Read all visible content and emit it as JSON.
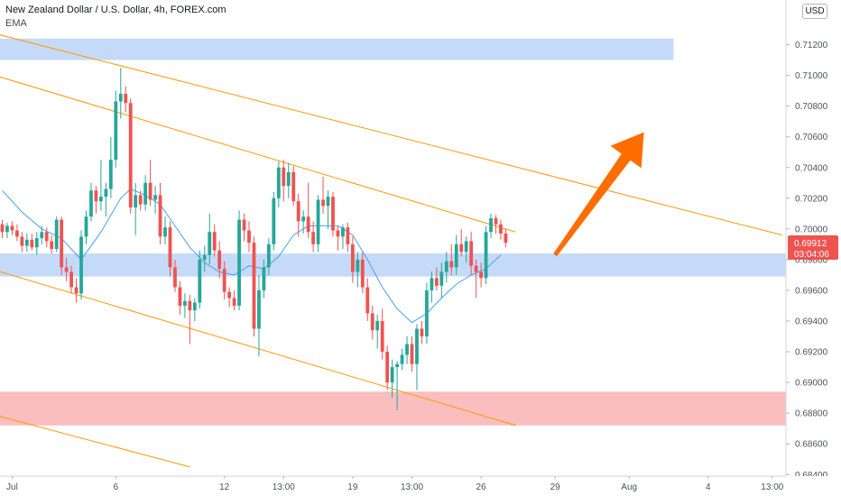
{
  "header": {
    "title": "New Zealand Dollar / U.S. Dollar, 4h, FOREX.com",
    "indicator": "EMA",
    "currency": "USD"
  },
  "price_label": {
    "price": "0.69912",
    "countdown": "03:04:06"
  },
  "colors": {
    "up": "#26a69a",
    "down": "#ef5350",
    "ema": "#42a5f5",
    "channel": "#ff9800",
    "support_zone": "#bbd3f7",
    "demand_zone": "#f9b3b3",
    "arrow": "#ff6d00",
    "price_tag": "#ef5350"
  },
  "chart_data": {
    "type": "candlestick",
    "symbol": "NZDUSD",
    "timeframe": "4h",
    "y_axis": {
      "min": 0.684,
      "max": 0.714,
      "ticks": [
        "0.71200",
        "0.71000",
        "0.70800",
        "0.70600",
        "0.70400",
        "0.70200",
        "0.70000",
        "0.69800",
        "0.69600",
        "0.69400",
        "0.69200",
        "0.69000",
        "0.68800",
        "0.68600",
        "0.68400"
      ]
    },
    "x_axis": {
      "labels": [
        {
          "text": "Jul",
          "bar": 2
        },
        {
          "text": "6",
          "bar": 23
        },
        {
          "text": "12",
          "bar": 45
        },
        {
          "text": "13:00",
          "bar": 57
        },
        {
          "text": "19",
          "bar": 71
        },
        {
          "text": "13:00",
          "bar": 83
        },
        {
          "text": "26",
          "bar": 97
        },
        {
          "text": "29",
          "bar": 112
        },
        {
          "text": "Aug",
          "bar": 127
        },
        {
          "text": "4",
          "bar": 143
        },
        {
          "text": "13:00",
          "bar": 156
        }
      ]
    },
    "last_price": 0.69912,
    "candles": [
      [
        0.7003,
        0.7006,
        0.6994,
        0.6998
      ],
      [
        0.6998,
        0.7004,
        0.6994,
        0.7002
      ],
      [
        0.7002,
        0.7005,
        0.6996,
        0.6999
      ],
      [
        0.6999,
        0.7003,
        0.6992,
        0.6995
      ],
      [
        0.6995,
        0.6998,
        0.6985,
        0.6989
      ],
      [
        0.6989,
        0.6997,
        0.6985,
        0.6993
      ],
      [
        0.6993,
        0.6997,
        0.6986,
        0.6988
      ],
      [
        0.6988,
        0.6998,
        0.6983,
        0.6994
      ],
      [
        0.6994,
        0.7002,
        0.699,
        0.6998
      ],
      [
        0.6998,
        0.7001,
        0.6988,
        0.6992
      ],
      [
        0.6992,
        0.6996,
        0.6984,
        0.6987
      ],
      [
        0.6987,
        0.7008,
        0.6985,
        0.7006
      ],
      [
        0.7006,
        0.7008,
        0.697,
        0.6975
      ],
      [
        0.6975,
        0.6981,
        0.6966,
        0.6972
      ],
      [
        0.6972,
        0.6976,
        0.6958,
        0.6962
      ],
      [
        0.6962,
        0.6968,
        0.6952,
        0.6958
      ],
      [
        0.6958,
        0.6999,
        0.6954,
        0.6995
      ],
      [
        0.6995,
        0.7012,
        0.699,
        0.7008
      ],
      [
        0.7008,
        0.703,
        0.7005,
        0.7025
      ],
      [
        0.7025,
        0.7028,
        0.701,
        0.7018
      ],
      [
        0.7018,
        0.7045,
        0.7012,
        0.7021
      ],
      [
        0.7021,
        0.703,
        0.7008,
        0.7026
      ],
      [
        0.7026,
        0.706,
        0.702,
        0.7045
      ],
      [
        0.7045,
        0.709,
        0.704,
        0.7083
      ],
      [
        0.7083,
        0.7105,
        0.7072,
        0.7088
      ],
      [
        0.7088,
        0.7093,
        0.7076,
        0.7082
      ],
      [
        0.7082,
        0.7085,
        0.701,
        0.7014
      ],
      [
        0.7014,
        0.703,
        0.6996,
        0.7022
      ],
      [
        0.7022,
        0.7025,
        0.7012,
        0.7016
      ],
      [
        0.7016,
        0.7035,
        0.7012,
        0.703
      ],
      [
        0.703,
        0.7045,
        0.7015,
        0.7019
      ],
      [
        0.7019,
        0.7028,
        0.701,
        0.7022
      ],
      [
        0.7022,
        0.703,
        0.699,
        0.6995
      ],
      [
        0.6995,
        0.7008,
        0.699,
        0.7001
      ],
      [
        0.7001,
        0.7005,
        0.6969,
        0.6975
      ],
      [
        0.6975,
        0.698,
        0.6959,
        0.6962
      ],
      [
        0.6962,
        0.6966,
        0.6944,
        0.695
      ],
      [
        0.695,
        0.6958,
        0.6942,
        0.6953
      ],
      [
        0.6953,
        0.6957,
        0.6925,
        0.6947
      ],
      [
        0.6947,
        0.6955,
        0.694,
        0.6952
      ],
      [
        0.6952,
        0.6986,
        0.6948,
        0.698
      ],
      [
        0.698,
        0.6989,
        0.6972,
        0.6983
      ],
      [
        0.6983,
        0.701,
        0.6977,
        0.6998
      ],
      [
        0.6998,
        0.7003,
        0.6982,
        0.6986
      ],
      [
        0.6986,
        0.6992,
        0.6968,
        0.6974
      ],
      [
        0.6974,
        0.6979,
        0.6954,
        0.6959
      ],
      [
        0.6959,
        0.6962,
        0.6949,
        0.6955
      ],
      [
        0.6955,
        0.696,
        0.6947,
        0.695
      ],
      [
        0.695,
        0.7012,
        0.6947,
        0.7006
      ],
      [
        0.7006,
        0.701,
        0.6992,
        0.6999
      ],
      [
        0.6999,
        0.7005,
        0.6985,
        0.6991
      ],
      [
        0.6991,
        0.6995,
        0.693,
        0.6935
      ],
      [
        0.6935,
        0.697,
        0.6917,
        0.696
      ],
      [
        0.696,
        0.698,
        0.6955,
        0.6975
      ],
      [
        0.6975,
        0.6994,
        0.697,
        0.699
      ],
      [
        0.699,
        0.7024,
        0.6986,
        0.702
      ],
      [
        0.702,
        0.7044,
        0.7014,
        0.704
      ],
      [
        0.704,
        0.7045,
        0.7018,
        0.7028
      ],
      [
        0.7028,
        0.7043,
        0.702,
        0.7037
      ],
      [
        0.7037,
        0.7041,
        0.7015,
        0.7018
      ],
      [
        0.7018,
        0.7023,
        0.6995,
        0.7005
      ],
      [
        0.7005,
        0.7012,
        0.6997,
        0.7008
      ],
      [
        0.7008,
        0.703,
        0.6994,
        0.6998
      ],
      [
        0.6998,
        0.7005,
        0.6985,
        0.699
      ],
      [
        0.699,
        0.7022,
        0.6985,
        0.7019
      ],
      [
        0.7019,
        0.7034,
        0.701,
        0.7015
      ],
      [
        0.7015,
        0.7025,
        0.7,
        0.7021
      ],
      [
        0.7021,
        0.7024,
        0.6995,
        0.6999
      ],
      [
        0.6999,
        0.7002,
        0.6986,
        0.6995
      ],
      [
        0.6995,
        0.7003,
        0.6987,
        0.7001
      ],
      [
        0.7001,
        0.7004,
        0.6985,
        0.699
      ],
      [
        0.699,
        0.6995,
        0.6965,
        0.6972
      ],
      [
        0.6972,
        0.6985,
        0.6962,
        0.698
      ],
      [
        0.698,
        0.6985,
        0.6958,
        0.6962
      ],
      [
        0.6962,
        0.6968,
        0.694,
        0.6945
      ],
      [
        0.6945,
        0.695,
        0.6928,
        0.6934
      ],
      [
        0.6934,
        0.6944,
        0.6922,
        0.694
      ],
      [
        0.694,
        0.6948,
        0.6915,
        0.692
      ],
      [
        0.692,
        0.6924,
        0.6895,
        0.69
      ],
      [
        0.69,
        0.6915,
        0.689,
        0.691
      ],
      [
        0.691,
        0.6914,
        0.6882,
        0.6912
      ],
      [
        0.6912,
        0.6922,
        0.6908,
        0.6918
      ],
      [
        0.6918,
        0.693,
        0.6912,
        0.6925
      ],
      [
        0.6925,
        0.693,
        0.6907,
        0.6912
      ],
      [
        0.6912,
        0.6938,
        0.6895,
        0.6935
      ],
      [
        0.6935,
        0.694,
        0.6925,
        0.693
      ],
      [
        0.693,
        0.6965,
        0.6925,
        0.696
      ],
      [
        0.696,
        0.6972,
        0.6952,
        0.6968
      ],
      [
        0.6968,
        0.6975,
        0.696,
        0.6963
      ],
      [
        0.6963,
        0.6978,
        0.6955,
        0.6972
      ],
      [
        0.6972,
        0.6985,
        0.6965,
        0.6979
      ],
      [
        0.6979,
        0.699,
        0.697,
        0.6975
      ],
      [
        0.6975,
        0.6996,
        0.697,
        0.699
      ],
      [
        0.699,
        0.7,
        0.6982,
        0.6985
      ],
      [
        0.6985,
        0.6995,
        0.6978,
        0.6992
      ],
      [
        0.6992,
        0.6998,
        0.697,
        0.6976
      ],
      [
        0.6976,
        0.698,
        0.6955,
        0.6972
      ],
      [
        0.6972,
        0.6978,
        0.6962,
        0.6968
      ],
      [
        0.6968,
        0.7002,
        0.6964,
        0.6998
      ],
      [
        0.6998,
        0.701,
        0.6994,
        0.7007
      ],
      [
        0.7007,
        0.7009,
        0.6997,
        0.7003
      ],
      [
        0.7003,
        0.7006,
        0.6993,
        0.6997
      ],
      [
        0.6997,
        0.7,
        0.6988,
        0.6991
      ]
    ],
    "ema": [
      [
        0,
        0.7025
      ],
      [
        4,
        0.7011
      ],
      [
        8,
        0.7
      ],
      [
        12,
        0.6994
      ],
      [
        16,
        0.698
      ],
      [
        20,
        0.6998
      ],
      [
        24,
        0.702
      ],
      [
        26,
        0.7026
      ],
      [
        29,
        0.7022
      ],
      [
        32,
        0.7016
      ],
      [
        35,
        0.7002
      ],
      [
        38,
        0.6988
      ],
      [
        41,
        0.6978
      ],
      [
        44,
        0.6972
      ],
      [
        47,
        0.697
      ],
      [
        50,
        0.6976
      ],
      [
        53,
        0.6974
      ],
      [
        56,
        0.6982
      ],
      [
        59,
        0.6996
      ],
      [
        62,
        0.7002
      ],
      [
        65,
        0.7002
      ],
      [
        68,
        0.7002
      ],
      [
        71,
        0.6996
      ],
      [
        74,
        0.698
      ],
      [
        77,
        0.6962
      ],
      [
        80,
        0.6948
      ],
      [
        83,
        0.6939
      ],
      [
        86,
        0.6945
      ],
      [
        89,
        0.6955
      ],
      [
        92,
        0.6964
      ],
      [
        95,
        0.697
      ],
      [
        98,
        0.6974
      ],
      [
        101,
        0.6983
      ]
    ],
    "channel_lines": [
      {
        "points": [
          [
            -17,
            0.714
          ],
          [
            158,
            0.6996
          ]
        ]
      },
      {
        "points": [
          [
            -17,
            0.7115
          ],
          [
            104,
            0.6998
          ]
        ]
      },
      {
        "points": [
          [
            -17,
            0.6988
          ],
          [
            104,
            0.6872
          ]
        ]
      },
      {
        "points": [
          [
            -17,
            0.6892
          ],
          [
            38,
            0.6845
          ]
        ]
      }
    ],
    "zones": [
      {
        "y_top": 0.7124,
        "y_bottom": 0.711,
        "from_bar": -17,
        "to_bar": 136
      },
      {
        "y_top": 0.6984,
        "y_bottom": 0.6969,
        "from_bar": -17,
        "to_bar": 163
      },
      {
        "y_top": 0.6894,
        "y_bottom": 0.6872,
        "from_bar": -17,
        "to_bar": 163
      }
    ],
    "arrow": {
      "from": [
        112,
        0.6983
      ],
      "to": [
        130,
        0.7063
      ]
    },
    "grid": false,
    "legend": "none"
  }
}
